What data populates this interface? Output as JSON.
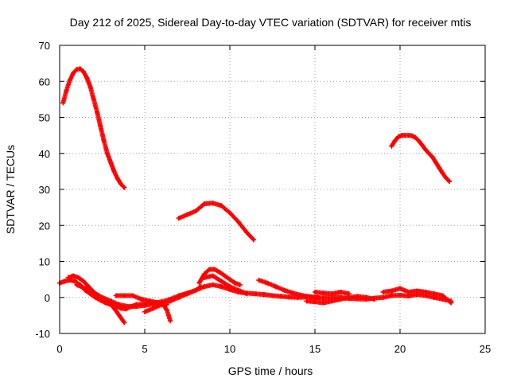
{
  "chart_data": {
    "type": "scatter",
    "title": "Day 212 of 2025, Sidereal Day-to-day VTEC variation (SDTVAR) for receiver mtis",
    "xlabel": "GPS time / hours",
    "ylabel": "SDTVAR / TECUs",
    "xlim": [
      0,
      25
    ],
    "ylim": [
      -10,
      70
    ],
    "xticks": [
      0,
      5,
      10,
      15,
      20,
      25
    ],
    "yticks": [
      -10,
      0,
      10,
      20,
      30,
      40,
      50,
      60,
      70
    ],
    "grid": true,
    "legend": "none",
    "marker": "plus",
    "color": "#ff0000",
    "series": [
      {
        "name": "arc-1",
        "x": [
          0.2,
          0.4,
          0.6,
          0.8,
          1.0,
          1.2,
          1.4,
          1.6,
          1.8,
          2.0,
          2.2,
          2.4,
          2.6,
          2.8,
          3.0,
          3.2,
          3.4,
          3.6,
          3.8
        ],
        "y": [
          54,
          57.5,
          60.3,
          62.3,
          63.3,
          63.5,
          62.7,
          61,
          58.5,
          55,
          51.5,
          47.5,
          43.5,
          40,
          37.5,
          35,
          33,
          31.5,
          30.5
        ]
      },
      {
        "name": "arc-2",
        "x": [
          7.0,
          7.5,
          8.0,
          8.5,
          9.0,
          9.5,
          10.0,
          10.5,
          11.0,
          11.4
        ],
        "y": [
          22,
          23,
          24,
          26,
          26.2,
          25.5,
          23.5,
          21,
          18,
          16
        ]
      },
      {
        "name": "arc-3",
        "x": [
          19.5,
          19.7,
          19.9,
          20.1,
          20.3,
          20.5,
          20.7,
          20.9,
          21.1,
          21.3,
          21.5,
          21.7,
          21.9,
          22.1,
          22.3,
          22.5,
          22.7,
          22.9
        ],
        "y": [
          42,
          43.5,
          44.6,
          45,
          45,
          45,
          44.9,
          44.4,
          43.5,
          42.3,
          41,
          40,
          39,
          37.5,
          36,
          34.5,
          33.2,
          32.2
        ]
      },
      {
        "name": "arc-4",
        "x": [
          0.0,
          0.3,
          0.6,
          0.9,
          1.2,
          1.5,
          1.8,
          2.1,
          2.4,
          2.7,
          3.0,
          3.3,
          3.6,
          3.9,
          4.2,
          4.5,
          5.0,
          5.5,
          6.0,
          6.5,
          7.0,
          7.5,
          8.0,
          8.5,
          9.0,
          9.5,
          10.0,
          10.5,
          11.0,
          11.5,
          12.0,
          12.5,
          13.0,
          13.5,
          14.0,
          14.5,
          15.0,
          15.5,
          16.0,
          16.5,
          17.0,
          17.5,
          18.0,
          18.5,
          19.0,
          19.5,
          20.0,
          20.5,
          21.0,
          21.5,
          22.0,
          22.5,
          23.0
        ],
        "y": [
          4,
          4.5,
          4.8,
          4.5,
          3.5,
          2,
          1,
          0,
          -0.8,
          -1.5,
          -2,
          -2.5,
          -3,
          -3.2,
          -2.5,
          -2,
          -1.8,
          -1.5,
          -1.2,
          -0.5,
          0.5,
          1.2,
          2,
          3,
          3.5,
          3,
          2.2,
          1.5,
          1.2,
          1,
          0.8,
          0.5,
          0.3,
          0.1,
          0,
          0.1,
          0,
          -0.2,
          0,
          0,
          -0.3,
          -0.4,
          -0.5,
          -0.2,
          0,
          0.5,
          0.6,
          0.4,
          0.8,
          0.5,
          0,
          -0.5,
          -1
        ]
      },
      {
        "name": "arc-5",
        "x": [
          0.5,
          0.8,
          1.1,
          1.4,
          1.7,
          2.0,
          2.3,
          2.6,
          2.9,
          3.2,
          3.5,
          3.8
        ],
        "y": [
          5.5,
          6,
          5.5,
          4.5,
          3,
          1.5,
          0.5,
          -0.5,
          -1.5,
          -3,
          -5,
          -7
        ]
      },
      {
        "name": "arc-6",
        "x": [
          1.0,
          1.5,
          2.0,
          2.5,
          3.0,
          3.5,
          4.0,
          4.5,
          5.0,
          5.5,
          6.0,
          6.3,
          6.5
        ],
        "y": [
          3.5,
          2.5,
          1,
          0,
          -1,
          -2,
          -2.5,
          -2.5,
          -2.2,
          -1.8,
          -1.5,
          -3.5,
          -6.5
        ]
      },
      {
        "name": "arc-7",
        "x": [
          3.3,
          3.8,
          4.3,
          4.8,
          5.3,
          5.8,
          6.3
        ],
        "y": [
          0.5,
          0.5,
          0.5,
          -0.5,
          -1,
          -1.5,
          -2
        ]
      },
      {
        "name": "arc-8",
        "x": [
          5.0,
          5.5,
          6.0,
          6.5,
          7.0,
          7.5,
          8.0,
          8.3
        ],
        "y": [
          -4,
          -3,
          -2,
          -1,
          0,
          1,
          2,
          3
        ]
      },
      {
        "name": "arc-9",
        "x": [
          8.2,
          8.5,
          8.8,
          9.1,
          9.4,
          9.7,
          10.0,
          10.3,
          10.6
        ],
        "y": [
          4,
          6.5,
          7.8,
          7.8,
          7,
          6,
          5,
          4,
          3.5
        ]
      },
      {
        "name": "arc-10",
        "x": [
          8.5,
          9.0,
          9.5,
          10.0,
          10.5,
          11.0
        ],
        "y": [
          5.5,
          6,
          4.5,
          3,
          2,
          1
        ]
      },
      {
        "name": "arc-11",
        "x": [
          11.7,
          12.2,
          12.7,
          13.2,
          13.7,
          14.2,
          14.7,
          15.2
        ],
        "y": [
          4.8,
          4,
          3,
          2,
          1.2,
          0.6,
          0.2,
          0
        ]
      },
      {
        "name": "arc-12",
        "x": [
          14.5,
          15.0,
          15.5,
          16.0,
          16.5,
          17.0,
          17.5,
          18.0,
          18.5
        ],
        "y": [
          -1,
          -1.2,
          -1.5,
          -1,
          -0.5,
          0,
          0.3,
          0,
          -0.5
        ]
      },
      {
        "name": "arc-13",
        "x": [
          15.0,
          15.5,
          16.0,
          16.5,
          17.0
        ],
        "y": [
          1.5,
          1.2,
          1,
          1.5,
          1
        ]
      },
      {
        "name": "arc-14",
        "x": [
          19.0,
          19.5,
          20.0,
          20.5,
          21.0,
          21.5,
          22.0,
          22.5,
          23.0
        ],
        "y": [
          1.5,
          1.8,
          2.5,
          1.5,
          1.8,
          1.5,
          1,
          0.5,
          -1.5
        ]
      }
    ]
  }
}
